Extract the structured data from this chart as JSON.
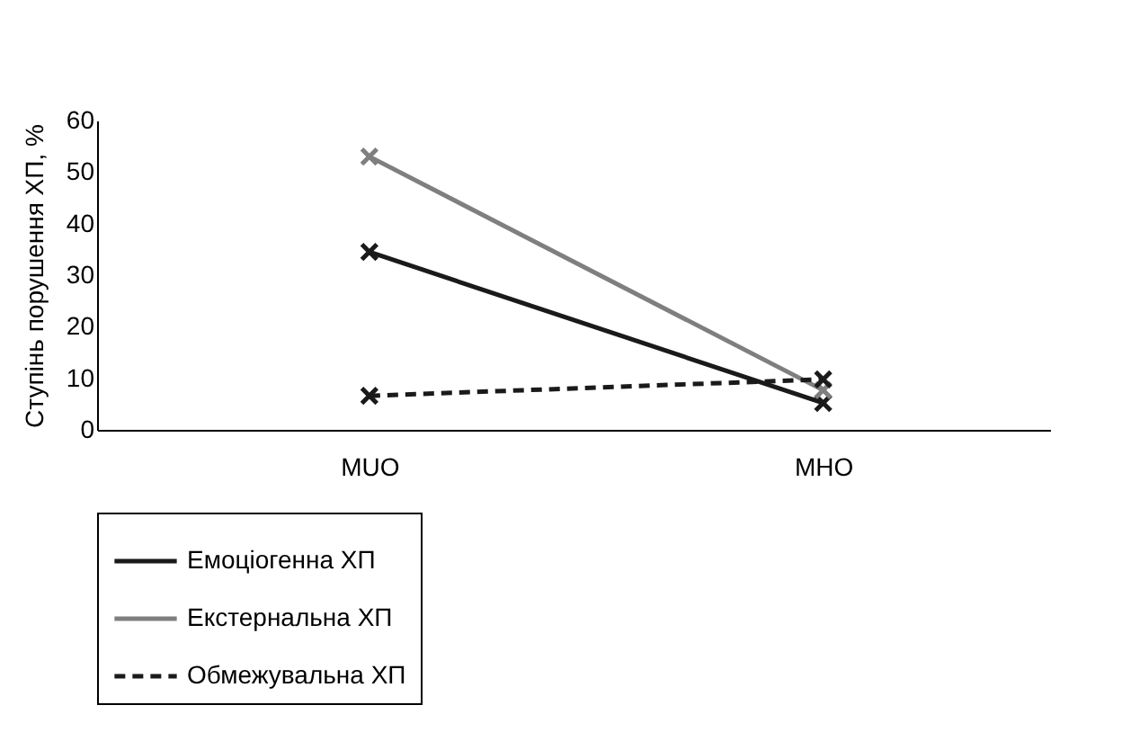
{
  "chart_data": {
    "type": "line",
    "ylabel": "Ступінь порушення ХП, %",
    "categories": [
      "MUO",
      "MHO"
    ],
    "series": [
      {
        "name": "Емоціогенна ХП",
        "color": "#1a1a1a",
        "line_style": "solid",
        "values": [
          34.5,
          5.2
        ]
      },
      {
        "name": "Екстернальна ХП",
        "color": "#7f7f7f",
        "line_style": "solid",
        "values": [
          53,
          7.7
        ]
      },
      {
        "name": "Обмежувальна ХП",
        "color": "#1a1a1a",
        "line_style": "dashed",
        "values": [
          6.6,
          9.8
        ]
      }
    ],
    "ylim": [
      0,
      60
    ],
    "yticks": [
      0,
      10,
      20,
      30,
      40,
      50,
      60
    ],
    "grid": false,
    "legend": "bottom",
    "marker": "cross"
  }
}
